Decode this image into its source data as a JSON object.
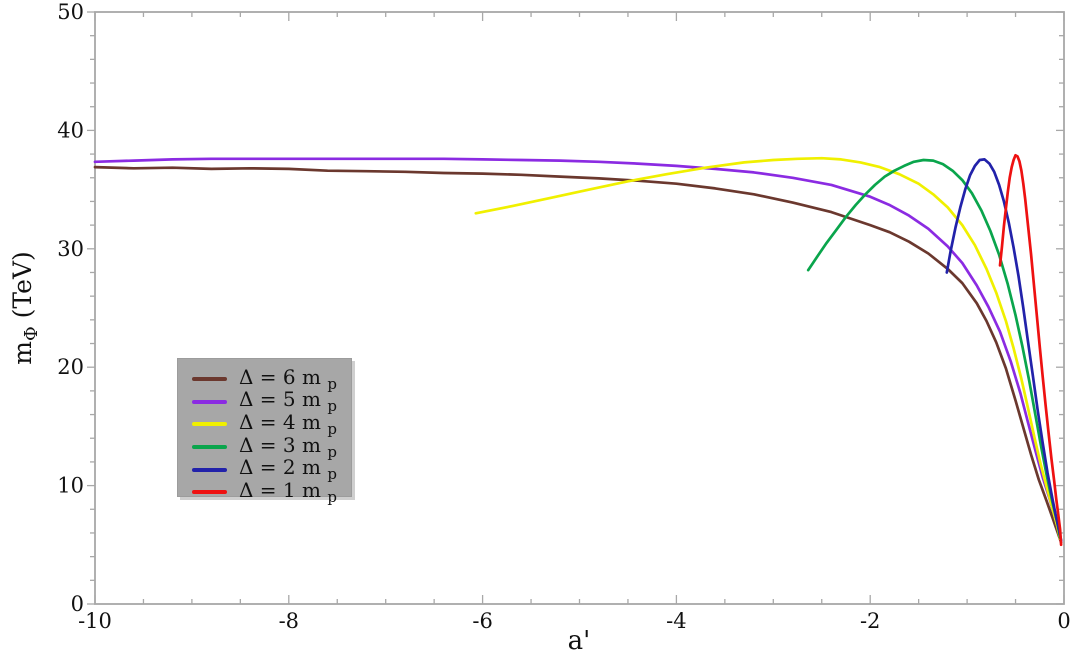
{
  "figure": {
    "background": "#ffffff",
    "axis_color": "#a8a8a8",
    "text_color": "#111111",
    "legend_bg": "#a7a7a7",
    "legend_shadow": "#cfcfcf"
  },
  "chart_data": {
    "type": "line",
    "title": "",
    "xlabel": "a'",
    "ylabel": "m_Phi (TeV)",
    "ylabel_parts": {
      "base": "m",
      "sub": "Φ",
      "unit": " (TeV)"
    },
    "xlim": [
      -10,
      0
    ],
    "ylim": [
      0,
      50
    ],
    "x_major_ticks": [
      -10,
      -8,
      -6,
      -4,
      -2,
      0
    ],
    "x_minor_step": 0.5,
    "y_major_ticks": [
      0,
      10,
      20,
      30,
      40,
      50
    ],
    "y_minor_step": 2,
    "grid": false,
    "frame": "box-with-inward-ticks",
    "legend_position": "left-center",
    "series": [
      {
        "name": "Δ = 6 m_p",
        "label_main": "Δ = 6 m",
        "label_sub": "p",
        "color": "#6b382e",
        "points": [
          [
            -10,
            36.9
          ],
          [
            -9.6,
            36.8
          ],
          [
            -9.2,
            36.85
          ],
          [
            -8.8,
            36.75
          ],
          [
            -8.4,
            36.8
          ],
          [
            -8,
            36.75
          ],
          [
            -7.6,
            36.6
          ],
          [
            -7.2,
            36.55
          ],
          [
            -6.8,
            36.5
          ],
          [
            -6.4,
            36.4
          ],
          [
            -6,
            36.35
          ],
          [
            -5.6,
            36.25
          ],
          [
            -5.2,
            36.1
          ],
          [
            -4.8,
            35.95
          ],
          [
            -4.4,
            35.75
          ],
          [
            -4,
            35.5
          ],
          [
            -3.6,
            35.1
          ],
          [
            -3.2,
            34.6
          ],
          [
            -2.8,
            33.9
          ],
          [
            -2.4,
            33.1
          ],
          [
            -2,
            32.0
          ],
          [
            -1.8,
            31.4
          ],
          [
            -1.6,
            30.6
          ],
          [
            -1.4,
            29.6
          ],
          [
            -1.2,
            28.3
          ],
          [
            -1.05,
            27.1
          ],
          [
            -0.9,
            25.4
          ],
          [
            -0.8,
            23.9
          ],
          [
            -0.7,
            22.1
          ],
          [
            -0.6,
            19.9
          ],
          [
            -0.5,
            17.2
          ],
          [
            -0.42,
            14.9
          ],
          [
            -0.34,
            12.6
          ],
          [
            -0.26,
            10.5
          ],
          [
            -0.18,
            8.7
          ],
          [
            -0.11,
            7.1
          ],
          [
            -0.06,
            5.9
          ],
          [
            -0.03,
            5.2
          ]
        ]
      },
      {
        "name": "Δ = 5 m_p",
        "label_main": "Δ = 5 m",
        "label_sub": "p",
        "color": "#8b2be2",
        "points": [
          [
            -10,
            37.35
          ],
          [
            -9.6,
            37.45
          ],
          [
            -9.2,
            37.55
          ],
          [
            -8.8,
            37.6
          ],
          [
            -8.4,
            37.6
          ],
          [
            -8,
            37.6
          ],
          [
            -7.6,
            37.6
          ],
          [
            -7.2,
            37.6
          ],
          [
            -6.8,
            37.6
          ],
          [
            -6.4,
            37.6
          ],
          [
            -6,
            37.55
          ],
          [
            -5.6,
            37.5
          ],
          [
            -5.2,
            37.45
          ],
          [
            -4.8,
            37.35
          ],
          [
            -4.4,
            37.2
          ],
          [
            -4,
            37.0
          ],
          [
            -3.6,
            36.75
          ],
          [
            -3.2,
            36.45
          ],
          [
            -2.8,
            36.0
          ],
          [
            -2.4,
            35.4
          ],
          [
            -2,
            34.4
          ],
          [
            -1.8,
            33.7
          ],
          [
            -1.6,
            32.8
          ],
          [
            -1.4,
            31.7
          ],
          [
            -1.2,
            30.2
          ],
          [
            -1.05,
            28.8
          ],
          [
            -0.9,
            26.9
          ],
          [
            -0.78,
            25.1
          ],
          [
            -0.66,
            23.0
          ],
          [
            -0.55,
            20.5
          ],
          [
            -0.45,
            17.8
          ],
          [
            -0.37,
            15.3
          ],
          [
            -0.29,
            12.8
          ],
          [
            -0.22,
            10.7
          ],
          [
            -0.15,
            8.9
          ],
          [
            -0.09,
            7.2
          ],
          [
            -0.05,
            6.0
          ],
          [
            -0.03,
            5.3
          ]
        ]
      },
      {
        "name": "Δ = 4 m_p",
        "label_main": "Δ = 4 m",
        "label_sub": "p",
        "color": "#f0f000",
        "points": [
          [
            -6.07,
            33.0
          ],
          [
            -5.7,
            33.6
          ],
          [
            -5.3,
            34.3
          ],
          [
            -4.9,
            35.0
          ],
          [
            -4.5,
            35.7
          ],
          [
            -4.1,
            36.3
          ],
          [
            -3.7,
            36.85
          ],
          [
            -3.3,
            37.3
          ],
          [
            -3,
            37.5
          ],
          [
            -2.75,
            37.6
          ],
          [
            -2.5,
            37.65
          ],
          [
            -2.3,
            37.55
          ],
          [
            -2.1,
            37.3
          ],
          [
            -1.9,
            36.9
          ],
          [
            -1.7,
            36.3
          ],
          [
            -1.5,
            35.5
          ],
          [
            -1.35,
            34.6
          ],
          [
            -1.2,
            33.5
          ],
          [
            -1.05,
            32.0
          ],
          [
            -0.92,
            30.3
          ],
          [
            -0.8,
            28.3
          ],
          [
            -0.7,
            26.3
          ],
          [
            -0.6,
            23.9
          ],
          [
            -0.52,
            21.6
          ],
          [
            -0.44,
            19.0
          ],
          [
            -0.37,
            16.5
          ],
          [
            -0.3,
            13.9
          ],
          [
            -0.24,
            11.8
          ],
          [
            -0.18,
            9.9
          ],
          [
            -0.12,
            8.1
          ],
          [
            -0.07,
            6.6
          ],
          [
            -0.04,
            5.5
          ]
        ]
      },
      {
        "name": "Δ = 3 m_p",
        "label_main": "Δ = 3 m",
        "label_sub": "p",
        "color": "#0aa54c",
        "points": [
          [
            -2.64,
            28.2
          ],
          [
            -2.55,
            29.3
          ],
          [
            -2.45,
            30.5
          ],
          [
            -2.35,
            31.6
          ],
          [
            -2.25,
            32.7
          ],
          [
            -2.15,
            33.7
          ],
          [
            -2.05,
            34.6
          ],
          [
            -1.95,
            35.4
          ],
          [
            -1.85,
            36.1
          ],
          [
            -1.75,
            36.6
          ],
          [
            -1.65,
            37.0
          ],
          [
            -1.55,
            37.35
          ],
          [
            -1.45,
            37.5
          ],
          [
            -1.35,
            37.45
          ],
          [
            -1.25,
            37.15
          ],
          [
            -1.15,
            36.6
          ],
          [
            -1.05,
            35.8
          ],
          [
            -0.95,
            34.7
          ],
          [
            -0.85,
            33.2
          ],
          [
            -0.76,
            31.5
          ],
          [
            -0.67,
            29.5
          ],
          [
            -0.58,
            27.0
          ],
          [
            -0.5,
            24.4
          ],
          [
            -0.43,
            21.8
          ],
          [
            -0.36,
            18.9
          ],
          [
            -0.3,
            16.2
          ],
          [
            -0.24,
            13.5
          ],
          [
            -0.18,
            10.9
          ],
          [
            -0.12,
            8.6
          ],
          [
            -0.07,
            6.9
          ],
          [
            -0.04,
            5.6
          ]
        ]
      },
      {
        "name": "Δ = 2 m_p",
        "label_main": "Δ = 2 m",
        "label_sub": "p",
        "color": "#2222aa",
        "points": [
          [
            -1.21,
            28.0
          ],
          [
            -1.17,
            29.8
          ],
          [
            -1.12,
            31.8
          ],
          [
            -1.07,
            33.5
          ],
          [
            -1.02,
            35.0
          ],
          [
            -0.97,
            36.2
          ],
          [
            -0.92,
            37.0
          ],
          [
            -0.87,
            37.5
          ],
          [
            -0.82,
            37.55
          ],
          [
            -0.77,
            37.2
          ],
          [
            -0.72,
            36.5
          ],
          [
            -0.67,
            35.4
          ],
          [
            -0.62,
            34.0
          ],
          [
            -0.57,
            32.2
          ],
          [
            -0.52,
            30.1
          ],
          [
            -0.47,
            27.7
          ],
          [
            -0.42,
            25.0
          ],
          [
            -0.37,
            22.1
          ],
          [
            -0.32,
            19.2
          ],
          [
            -0.27,
            16.3
          ],
          [
            -0.22,
            13.6
          ],
          [
            -0.17,
            11.1
          ],
          [
            -0.12,
            8.9
          ],
          [
            -0.08,
            7.3
          ],
          [
            -0.05,
            6.2
          ],
          [
            -0.03,
            5.4
          ]
        ]
      },
      {
        "name": "Δ = 1 m_p",
        "label_main": "Δ = 1 m",
        "label_sub": "p",
        "color": "#ee1111",
        "points": [
          [
            -0.66,
            28.6
          ],
          [
            -0.64,
            30.2
          ],
          [
            -0.62,
            31.9
          ],
          [
            -0.6,
            33.4
          ],
          [
            -0.58,
            34.8
          ],
          [
            -0.56,
            36.0
          ],
          [
            -0.54,
            36.9
          ],
          [
            -0.52,
            37.5
          ],
          [
            -0.5,
            37.9
          ],
          [
            -0.48,
            37.8
          ],
          [
            -0.46,
            37.4
          ],
          [
            -0.44,
            36.6
          ],
          [
            -0.42,
            35.5
          ],
          [
            -0.4,
            34.2
          ],
          [
            -0.37,
            31.9
          ],
          [
            -0.34,
            29.5
          ],
          [
            -0.31,
            26.9
          ],
          [
            -0.28,
            24.3
          ],
          [
            -0.25,
            21.7
          ],
          [
            -0.22,
            19.2
          ],
          [
            -0.19,
            16.8
          ],
          [
            -0.16,
            14.5
          ],
          [
            -0.13,
            12.3
          ],
          [
            -0.1,
            10.3
          ],
          [
            -0.08,
            8.9
          ],
          [
            -0.06,
            7.6
          ],
          [
            -0.04,
            6.3
          ],
          [
            -0.03,
            5.0
          ]
        ]
      }
    ]
  }
}
